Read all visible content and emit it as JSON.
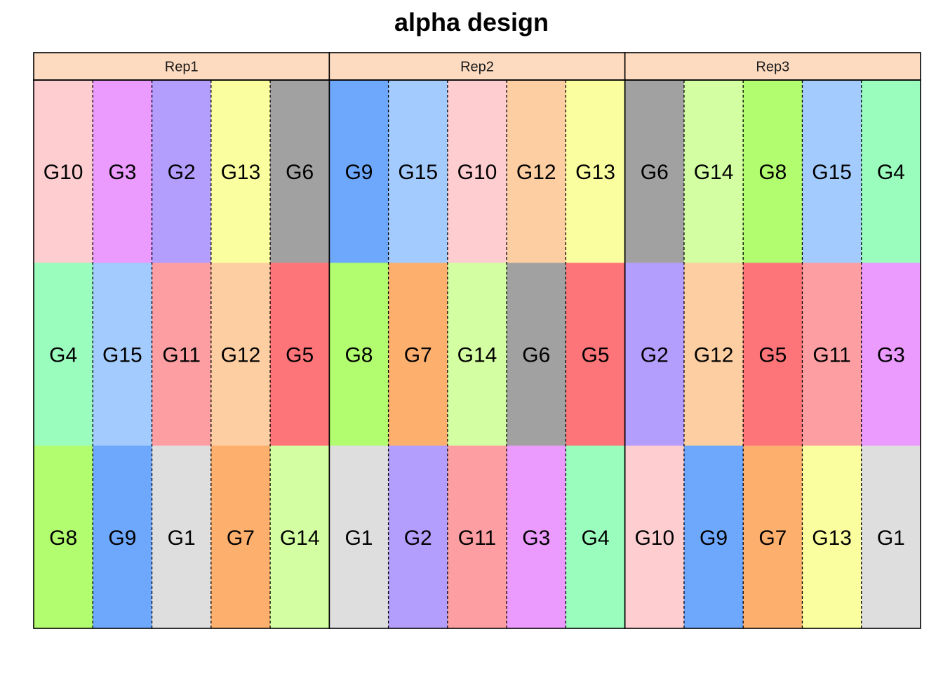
{
  "chart_data": {
    "type": "heatmap",
    "title": "alpha design",
    "strip_color": "#FDDBC0",
    "divider_style": "dashed",
    "panels": [
      {
        "name": "Rep1",
        "rows": [
          [
            "G10",
            "G3",
            "G2",
            "G13",
            "G6"
          ],
          [
            "G4",
            "G15",
            "G11",
            "G12",
            "G5"
          ],
          [
            "G8",
            "G9",
            "G1",
            "G7",
            "G14"
          ]
        ]
      },
      {
        "name": "Rep2",
        "rows": [
          [
            "G9",
            "G15",
            "G10",
            "G12",
            "G13"
          ],
          [
            "G8",
            "G7",
            "G14",
            "G6",
            "G5"
          ],
          [
            "G1",
            "G2",
            "G11",
            "G3",
            "G4"
          ]
        ]
      },
      {
        "name": "Rep3",
        "rows": [
          [
            "G6",
            "G14",
            "G8",
            "G15",
            "G4"
          ],
          [
            "G2",
            "G12",
            "G5",
            "G11",
            "G3"
          ],
          [
            "G10",
            "G9",
            "G7",
            "G13",
            "G1"
          ]
        ]
      }
    ],
    "treatment_colors": {
      "G1": "#DEDEDE",
      "G2": "#B39DFD",
      "G3": "#EA9BFD",
      "G4": "#9AFDBE",
      "G5": "#FE7579",
      "G6": "#A1A1A1",
      "G7": "#FDAF6E",
      "G8": "#B2FD6F",
      "G9": "#6EA8FD",
      "G10": "#FDCDD0",
      "G11": "#FD9FA2",
      "G12": "#FDCEA2",
      "G13": "#FBFE9E",
      "G14": "#D3FEA1",
      "G15": "#A3CBFD"
    }
  }
}
